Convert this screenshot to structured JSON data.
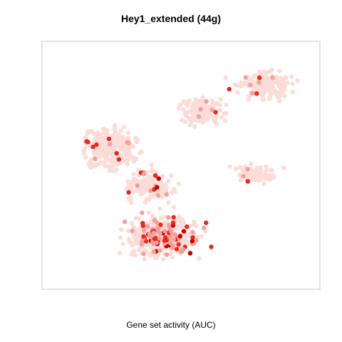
{
  "chart_data": {
    "type": "scatter",
    "title": "Hey1_extended (44g)",
    "xlabel": "Gene set activity (AUC)",
    "ylabel": "",
    "xlim": [
      0,
      100
    ],
    "ylim": [
      0,
      100
    ],
    "grid": false,
    "legend": "none",
    "colors": {
      "low": "#fcdcd8",
      "mid": "#f4a09a",
      "high": "#e8281e",
      "max": "#c00000",
      "frame": "#c8c8c8"
    },
    "clusters": [
      {
        "name": "top-right",
        "cx": 82,
        "cy": 85,
        "rx": 16,
        "ry": 10,
        "n": 170,
        "hot": 0.06
      },
      {
        "name": "top-middle",
        "cx": 58,
        "cy": 73,
        "rx": 14,
        "ry": 9,
        "n": 130,
        "hot": 0.05
      },
      {
        "name": "left-arm",
        "cx": 23,
        "cy": 58,
        "rx": 16,
        "ry": 13,
        "n": 280,
        "hot": 0.04
      },
      {
        "name": "center-link",
        "cx": 38,
        "cy": 42,
        "rx": 13,
        "ry": 10,
        "n": 160,
        "hot": 0.05
      },
      {
        "name": "right-arm",
        "cx": 78,
        "cy": 47,
        "rx": 13,
        "ry": 6,
        "n": 90,
        "hot": 0.06
      },
      {
        "name": "bottom-lobe",
        "cx": 43,
        "cy": 20,
        "rx": 22,
        "ry": 14,
        "n": 420,
        "hot": 0.22
      }
    ]
  },
  "labels": {
    "title": "Hey1_extended (44g)",
    "xlabel": "Gene set activity (AUC)"
  }
}
